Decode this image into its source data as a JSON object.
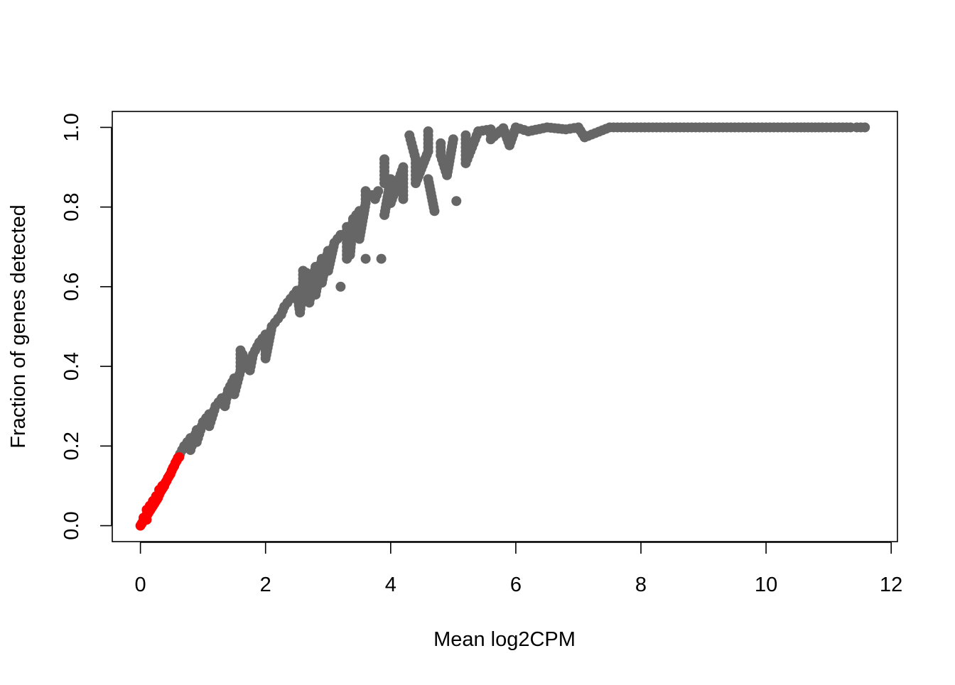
{
  "chart_data": {
    "type": "scatter",
    "title": "",
    "xlabel": "Mean log2CPM",
    "ylabel": "Fraction of genes detected",
    "xlim": [
      -0.45,
      12.1
    ],
    "ylim": [
      -0.04,
      1.04
    ],
    "x_ticks": [
      0,
      2,
      4,
      6,
      8,
      10,
      12
    ],
    "y_ticks": [
      0.0,
      0.2,
      0.4,
      0.6,
      0.8,
      1.0
    ],
    "x_tick_labels": [
      "0",
      "2",
      "4",
      "6",
      "8",
      "10",
      "12"
    ],
    "y_tick_labels": [
      "0.0",
      "0.2",
      "0.4",
      "0.6",
      "0.8",
      "1.0"
    ],
    "grid": false,
    "legend": "none",
    "series": [
      {
        "color": "#666666",
        "description_trend": "monotone saturating curve, dense band",
        "points": [
          [
            0.6,
            0.17
          ],
          [
            0.7,
            0.2
          ],
          [
            0.8,
            0.22
          ],
          [
            0.9,
            0.24
          ],
          [
            1.0,
            0.26
          ],
          [
            1.1,
            0.28
          ],
          [
            1.2,
            0.3
          ],
          [
            1.3,
            0.32
          ],
          [
            1.4,
            0.34
          ],
          [
            1.5,
            0.37
          ],
          [
            1.6,
            0.39
          ],
          [
            1.7,
            0.41
          ],
          [
            1.8,
            0.43
          ],
          [
            1.9,
            0.46
          ],
          [
            2.0,
            0.48
          ],
          [
            2.1,
            0.5
          ],
          [
            2.2,
            0.52
          ],
          [
            2.3,
            0.55
          ],
          [
            2.4,
            0.57
          ],
          [
            2.5,
            0.59
          ],
          [
            2.6,
            0.61
          ],
          [
            2.7,
            0.63
          ],
          [
            2.8,
            0.65
          ],
          [
            2.9,
            0.67
          ],
          [
            3.0,
            0.69
          ],
          [
            3.1,
            0.71
          ],
          [
            3.2,
            0.73
          ],
          [
            3.3,
            0.75
          ],
          [
            3.4,
            0.77
          ],
          [
            3.5,
            0.79
          ],
          [
            3.6,
            0.81
          ],
          [
            3.7,
            0.83
          ],
          [
            3.8,
            0.84
          ],
          [
            3.9,
            0.86
          ],
          [
            4.0,
            0.87
          ],
          [
            4.2,
            0.9
          ],
          [
            4.4,
            0.92
          ],
          [
            4.6,
            0.94
          ],
          [
            4.8,
            0.96
          ],
          [
            5.0,
            0.97
          ],
          [
            5.2,
            0.98
          ],
          [
            5.4,
            0.99
          ],
          [
            5.6,
            0.995
          ],
          [
            5.8,
            0.998
          ],
          [
            6.0,
            1.0
          ],
          [
            6.5,
            1.0
          ],
          [
            7.0,
            1.0
          ],
          [
            7.5,
            1.0
          ],
          [
            8.0,
            1.0
          ],
          [
            8.5,
            1.0
          ],
          [
            9.0,
            1.0
          ],
          [
            9.5,
            1.0
          ],
          [
            10.0,
            1.0
          ],
          [
            10.5,
            1.0
          ],
          [
            10.9,
            1.0
          ],
          [
            11.1,
            1.0
          ],
          [
            11.35,
            1.0
          ],
          [
            11.45,
            1.0
          ],
          [
            11.58,
            1.0
          ],
          [
            4.6,
            0.99
          ],
          [
            4.3,
            0.98
          ],
          [
            3.9,
            0.92
          ],
          [
            3.6,
            0.84
          ],
          [
            1.6,
            0.44
          ],
          [
            2.25,
            0.53
          ],
          [
            2.35,
            0.56
          ],
          [
            2.7,
            0.56
          ],
          [
            2.6,
            0.64
          ],
          [
            2.9,
            0.61
          ],
          [
            3.0,
            0.64
          ],
          [
            3.2,
            0.6
          ],
          [
            3.35,
            0.68
          ],
          [
            3.6,
            0.67
          ],
          [
            3.85,
            0.67
          ],
          [
            3.75,
            0.82
          ],
          [
            3.9,
            0.78
          ],
          [
            4.7,
            0.79
          ],
          [
            5.05,
            0.815
          ],
          [
            4.2,
            0.82
          ],
          [
            4.6,
            0.87
          ],
          [
            4.9,
            0.88
          ],
          [
            5.2,
            0.91
          ],
          [
            5.9,
            0.955
          ],
          [
            7.1,
            0.975
          ],
          [
            2.55,
            0.535
          ],
          [
            2.0,
            0.45
          ],
          [
            1.35,
            0.3
          ],
          [
            1.1,
            0.25
          ],
          [
            0.9,
            0.21
          ],
          [
            0.8,
            0.19
          ],
          [
            1.5,
            0.33
          ],
          [
            2.0,
            0.42
          ],
          [
            1.75,
            0.39
          ],
          [
            2.8,
            0.58
          ],
          [
            3.3,
            0.67
          ],
          [
            3.5,
            0.72
          ],
          [
            4.0,
            0.81
          ],
          [
            4.4,
            0.86
          ],
          [
            4.8,
            0.93
          ],
          [
            5.3,
            0.95
          ],
          [
            5.6,
            0.97
          ],
          [
            6.2,
            0.99
          ],
          [
            6.8,
            0.995
          ]
        ]
      },
      {
        "color": "#ff0000",
        "description_trend": "low-expression genes, short dense linear segment",
        "points": [
          [
            0.0,
            0.0
          ],
          [
            0.02,
            0.005
          ],
          [
            0.04,
            0.01
          ],
          [
            0.06,
            0.015
          ],
          [
            0.08,
            0.02
          ],
          [
            0.1,
            0.025
          ],
          [
            0.12,
            0.03
          ],
          [
            0.14,
            0.035
          ],
          [
            0.16,
            0.04
          ],
          [
            0.18,
            0.045
          ],
          [
            0.2,
            0.05
          ],
          [
            0.22,
            0.055
          ],
          [
            0.24,
            0.06
          ],
          [
            0.26,
            0.065
          ],
          [
            0.28,
            0.07
          ],
          [
            0.3,
            0.078
          ],
          [
            0.32,
            0.085
          ],
          [
            0.34,
            0.09
          ],
          [
            0.36,
            0.095
          ],
          [
            0.38,
            0.1
          ],
          [
            0.4,
            0.108
          ],
          [
            0.42,
            0.113
          ],
          [
            0.44,
            0.12
          ],
          [
            0.46,
            0.125
          ],
          [
            0.48,
            0.13
          ],
          [
            0.5,
            0.138
          ],
          [
            0.52,
            0.145
          ],
          [
            0.54,
            0.15
          ],
          [
            0.56,
            0.158
          ],
          [
            0.58,
            0.163
          ],
          [
            0.6,
            0.17
          ],
          [
            0.62,
            0.172
          ],
          [
            0.1,
            0.04
          ],
          [
            0.15,
            0.05
          ],
          [
            0.2,
            0.062
          ],
          [
            0.25,
            0.074
          ],
          [
            0.3,
            0.09
          ],
          [
            0.35,
            0.1
          ],
          [
            0.05,
            0.02
          ],
          [
            0.1,
            0.015
          ]
        ]
      }
    ]
  }
}
